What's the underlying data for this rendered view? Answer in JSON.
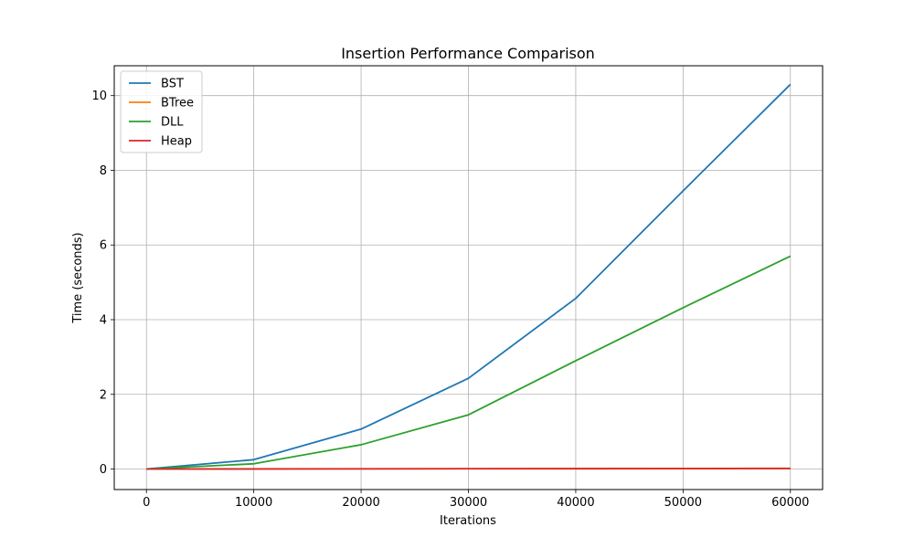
{
  "chart_data": {
    "type": "line",
    "title": "Insertion Performance Comparison",
    "xlabel": "Iterations",
    "ylabel": "Time (seconds)",
    "x": [
      0,
      10000,
      20000,
      30000,
      40000,
      50000,
      60000
    ],
    "xlim": [
      -3000,
      63000
    ],
    "ylim": [
      -0.55,
      10.8
    ],
    "xticks": [
      0,
      10000,
      20000,
      30000,
      40000,
      50000,
      60000
    ],
    "xtick_labels": [
      "0",
      "10000",
      "20000",
      "30000",
      "40000",
      "50000",
      "60000"
    ],
    "yticks": [
      0,
      2,
      4,
      6,
      8,
      10
    ],
    "ytick_labels": [
      "0",
      "2",
      "4",
      "6",
      "8",
      "10"
    ],
    "grid": true,
    "legend_position": "top-left",
    "series": [
      {
        "name": "BST",
        "color": "#1f77b4",
        "values": [
          0,
          0.25,
          1.07,
          2.43,
          4.57,
          7.45,
          10.3
        ]
      },
      {
        "name": "BTree",
        "color": "#ff7f0e",
        "values": [
          0,
          0.003,
          0.006,
          0.009,
          0.012,
          0.015,
          0.018
        ]
      },
      {
        "name": "DLL",
        "color": "#2ca02c",
        "values": [
          0,
          0.14,
          0.65,
          1.45,
          2.9,
          4.32,
          5.7
        ]
      },
      {
        "name": "Heap",
        "color": "#d62728",
        "values": [
          0,
          0.002,
          0.004,
          0.006,
          0.008,
          0.01,
          0.012
        ]
      }
    ]
  }
}
